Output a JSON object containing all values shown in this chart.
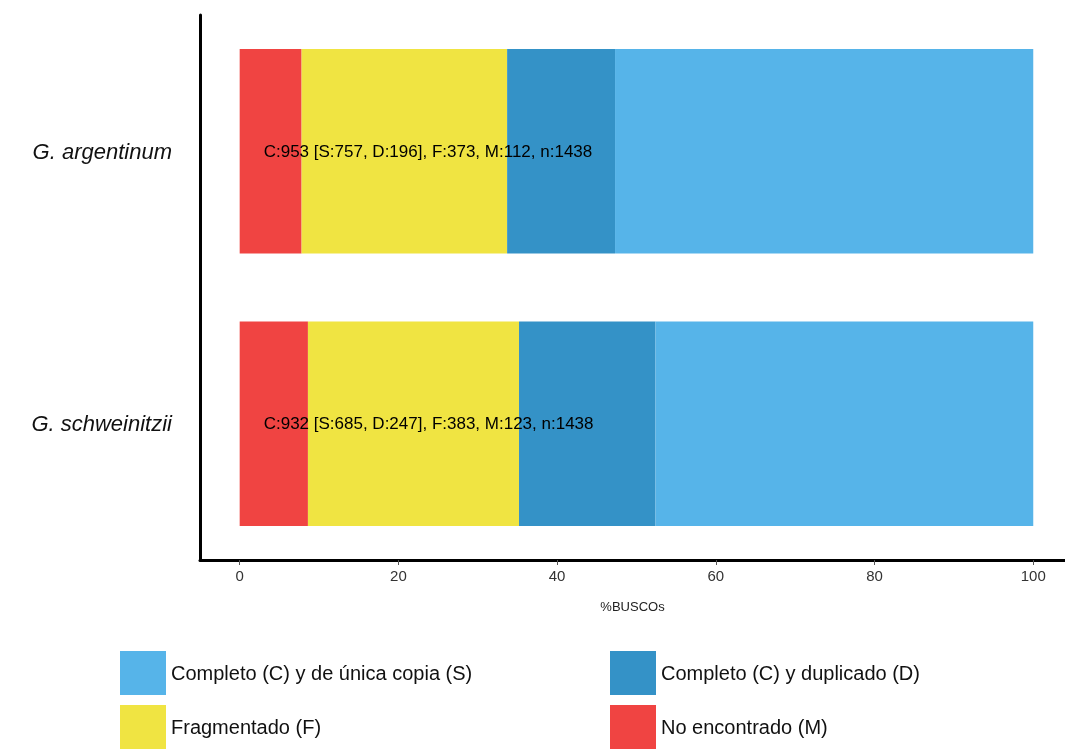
{
  "chart_data": {
    "type": "bar",
    "orientation": "horizontal",
    "stacked": true,
    "xlabel": "%BUSCOs",
    "categories": [
      "G. argentinum",
      "G. schweinitzii"
    ],
    "series": [
      {
        "name": "No encontrado (M)",
        "color": "#f04442",
        "values": [
          7.8,
          8.6
        ]
      },
      {
        "name": "Fragmentado (F)",
        "color": "#f0e442",
        "values": [
          25.9,
          26.6
        ]
      },
      {
        "name": "Completo (C) y duplicado (D)",
        "color": "#3492c7",
        "values": [
          13.6,
          17.2
        ]
      },
      {
        "name": "Completo (C) y de única copia (S)",
        "color": "#56b4e9",
        "values": [
          52.7,
          47.6
        ]
      }
    ],
    "xlim": [
      -5,
      104
    ],
    "xticks": [
      0,
      20,
      40,
      60,
      80,
      100
    ],
    "grid": false,
    "legend": "bottom",
    "annotations": [
      "C:953 [S:757, D:196], F:373, M:112, n:1438",
      "C:932 [S:685, D:247], F:383, M:123, n:1438"
    ]
  }
}
